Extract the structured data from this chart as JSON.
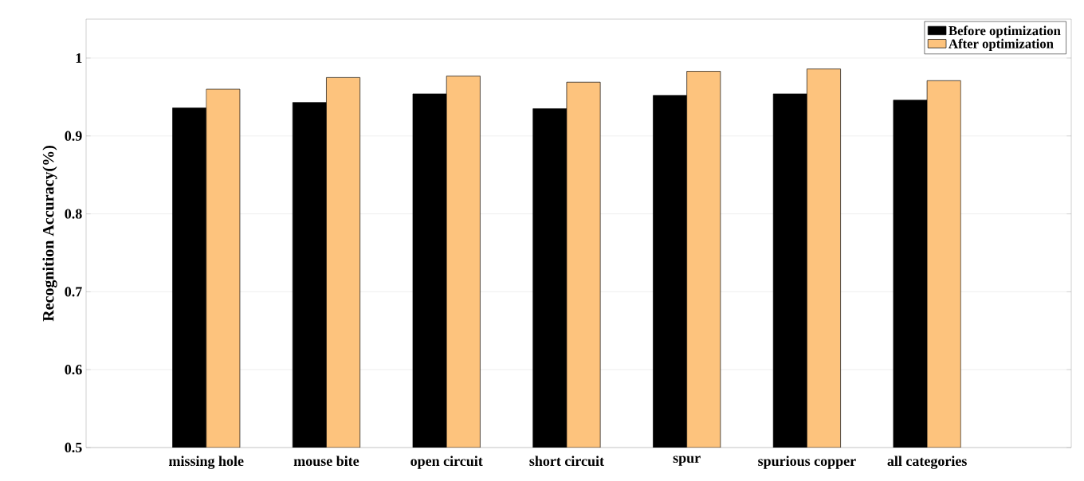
{
  "chart_data": {
    "type": "bar",
    "ylabel": "Recognition Accuracy(%)",
    "categories": [
      "missing hole",
      "mouse bite",
      "open circuit",
      "short circuit",
      "spur",
      "spurious copper",
      "all categories"
    ],
    "series": [
      {
        "name": "Before optimization",
        "color": "#000000",
        "values": [
          0.936,
          0.943,
          0.954,
          0.935,
          0.952,
          0.954,
          0.946
        ]
      },
      {
        "name": "After optimization",
        "color": "#fdc37d",
        "values": [
          0.96,
          0.975,
          0.977,
          0.969,
          0.983,
          0.986,
          0.971
        ]
      }
    ],
    "ylim": [
      0.5,
      1.05
    ],
    "yticks": [
      0.5,
      0.6,
      0.7,
      0.8,
      0.9,
      1
    ],
    "grid": "y",
    "legend": "top right"
  }
}
